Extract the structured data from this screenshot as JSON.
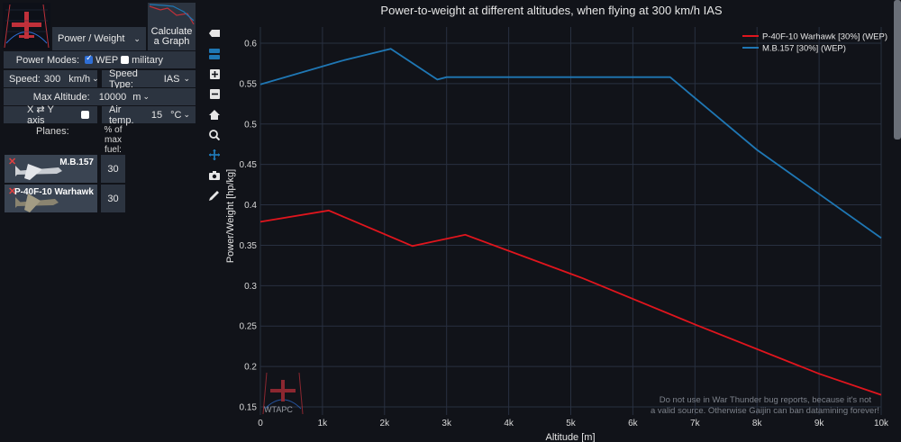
{
  "controls": {
    "graph_type": "Power / Weight",
    "calc_label_1": "Calculate",
    "calc_label_2": "a Graph",
    "power_modes_label": "Power Modes:",
    "wep_label": "WEP",
    "military_label": "military",
    "speed_label": "Speed:",
    "speed_value": "300",
    "speed_unit": "km/h",
    "speed_type_label": "Speed Type:",
    "speed_type_value": "IAS",
    "max_alt_label": "Max Altitude:",
    "max_alt_value": "10000",
    "max_alt_unit": "m",
    "swap_axis_label": "X ⇄ Y axis",
    "air_temp_label": "Air temp.",
    "air_temp_value": "15",
    "air_temp_unit": "°C",
    "planes_label": "Planes:",
    "fuel_label_1": "% of",
    "fuel_label_2": "max",
    "fuel_label_3": "fuel:"
  },
  "planes": [
    {
      "name": "M.B.157",
      "fuel": "30"
    },
    {
      "name": "P-40F-10 Warhawk",
      "fuel": "30"
    }
  ],
  "logo_text": "WTAPC",
  "disclaimer_1": "Do not use in War Thunder bug reports, because it's not",
  "disclaimer_2": "a valid source. Otherwise Gaijin can ban datamining forever!",
  "colors": {
    "red": "#e0151d",
    "blue": "#1f77b4",
    "accent": "#2f6fd6"
  },
  "chart_data": {
    "type": "line",
    "title": "Power-to-weight at different altitudes, when flying at 300 km/h IAS",
    "xlabel": "Altitude [m]",
    "ylabel": "Power/Weight [hp/kg]",
    "xlim": [
      0,
      10000
    ],
    "ylim": [
      0.14,
      0.62
    ],
    "x_ticks": [
      0,
      1000,
      2000,
      3000,
      4000,
      5000,
      6000,
      7000,
      8000,
      9000,
      10000
    ],
    "x_tick_labels": [
      "0",
      "1k",
      "2k",
      "3k",
      "4k",
      "5k",
      "6k",
      "7k",
      "8k",
      "9k",
      "10k"
    ],
    "y_ticks": [
      0.15,
      0.2,
      0.25,
      0.3,
      0.35,
      0.4,
      0.45,
      0.5,
      0.55,
      0.6
    ],
    "y_tick_labels": [
      "0.15",
      "0.2",
      "0.25",
      "0.3",
      "0.35",
      "0.4",
      "0.45",
      "0.5",
      "0.55",
      "0.6"
    ],
    "legend_position": "top-right",
    "series": [
      {
        "name": "P-40F-10 Warhawk [30%] (WEP)",
        "color": "#e0151d",
        "x": [
          0,
          1100,
          2450,
          3300,
          5200,
          7000,
          9000,
          10000
        ],
        "y": [
          0.379,
          0.393,
          0.349,
          0.363,
          0.309,
          0.252,
          0.191,
          0.165
        ]
      },
      {
        "name": "M.B.157 [30%] (WEP)",
        "color": "#1f77b4",
        "x": [
          0,
          1300,
          2100,
          2850,
          3000,
          6600,
          8000,
          10000
        ],
        "y": [
          0.549,
          0.578,
          0.593,
          0.555,
          0.558,
          0.558,
          0.468,
          0.359
        ]
      }
    ]
  }
}
